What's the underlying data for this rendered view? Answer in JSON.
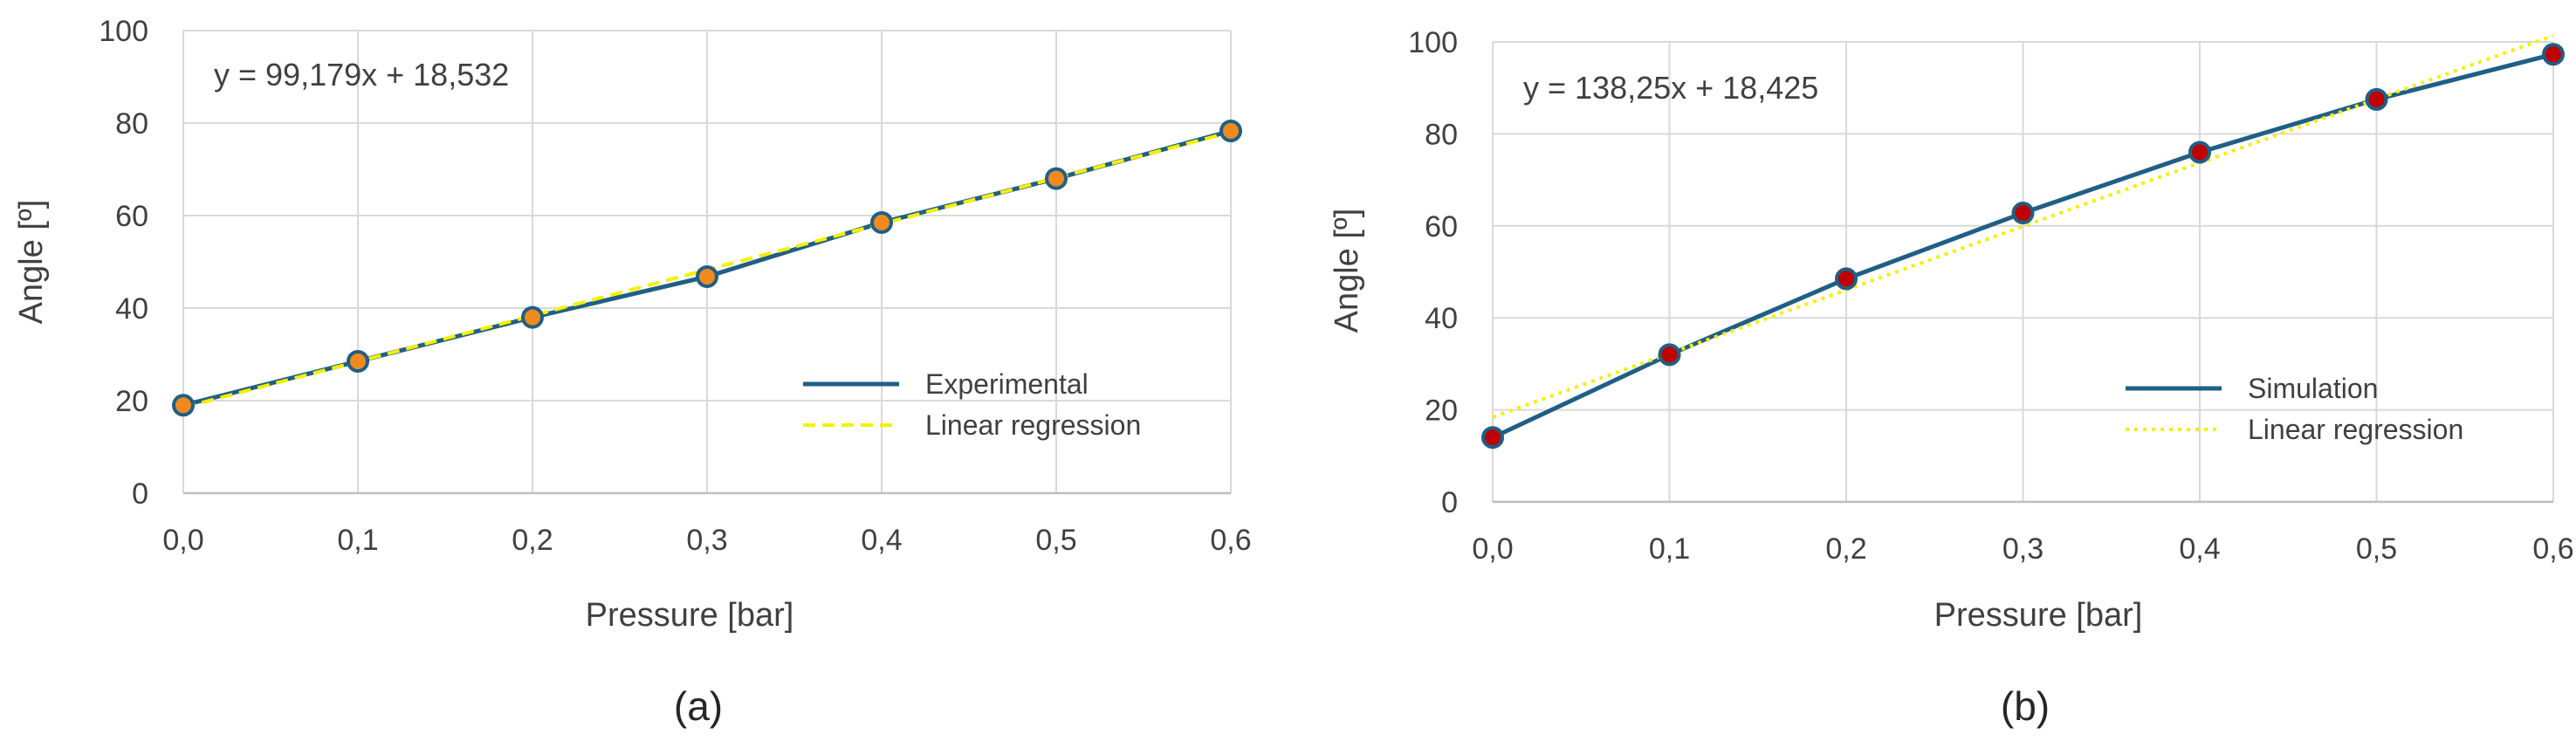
{
  "colors": {
    "series_line": "#1f5f86",
    "regression_line": "#f5f000",
    "marker_fill_a": "#f08a1e",
    "marker_fill_b": "#c00000",
    "marker_edge": "#1f5f86",
    "grid": "#d9d9d9",
    "text": "#404040"
  },
  "chart_data": [
    {
      "type": "line",
      "panel_label": "(a)",
      "equation": "y = 99,179x + 18,532",
      "xlabel": "Pressure [bar]",
      "ylabel": "Angle [º]",
      "xlim": [
        0,
        0.6
      ],
      "ylim": [
        0,
        100
      ],
      "x_ticks": [
        "0,0",
        "0,1",
        "0,2",
        "0,3",
        "0,4",
        "0,5",
        "0,6"
      ],
      "y_ticks": [
        "0",
        "20",
        "40",
        "60",
        "80",
        "100"
      ],
      "grid": true,
      "legend_position": "bottom-right",
      "x": [
        0,
        0.1,
        0.2,
        0.3,
        0.4,
        0.5,
        0.6
      ],
      "series": [
        {
          "name": "Experimental",
          "values": [
            19,
            28.5,
            38,
            46.8,
            58.5,
            68,
            78.3
          ],
          "style": "solid",
          "markers": true
        },
        {
          "name": "Linear regression",
          "values": [
            18.532,
            28.45,
            38.368,
            48.286,
            58.204,
            68.122,
            78.039
          ],
          "style": "dashed",
          "markers": false
        }
      ]
    },
    {
      "type": "line",
      "panel_label": "(b)",
      "equation": "y = 138,25x + 18,425",
      "xlabel": "Pressure [bar]",
      "ylabel": "Angle [º]",
      "xlim": [
        0,
        0.6
      ],
      "ylim": [
        0,
        100
      ],
      "x_ticks": [
        "0,0",
        "0,1",
        "0,2",
        "0,3",
        "0,4",
        "0,5",
        "0,6"
      ],
      "y_ticks": [
        "0",
        "20",
        "40",
        "60",
        "80",
        "100"
      ],
      "grid": true,
      "legend_position": "bottom-right",
      "x": [
        0,
        0.1,
        0.2,
        0.3,
        0.4,
        0.5,
        0.6
      ],
      "series": [
        {
          "name": "Simulation",
          "values": [
            14,
            32,
            48.5,
            62.8,
            76,
            87.5,
            97.3
          ],
          "style": "solid",
          "markers": true
        },
        {
          "name": "Linear regression",
          "values": [
            18.425,
            32.25,
            46.075,
            59.9,
            73.725,
            87.55,
            101.375
          ],
          "style": "dotted",
          "markers": false
        }
      ]
    }
  ]
}
